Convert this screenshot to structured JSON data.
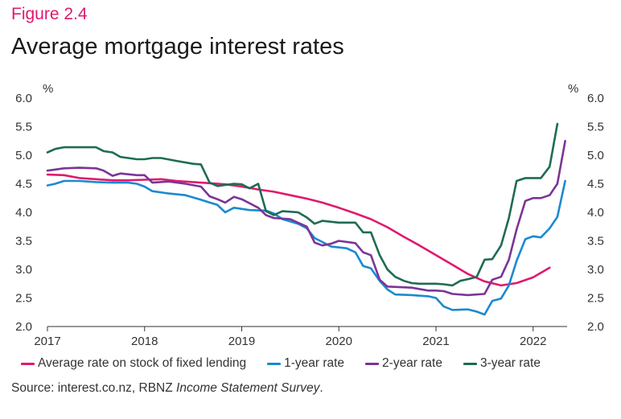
{
  "header": {
    "figure_label": "Figure 2.4",
    "title": "Average mortgage interest rates"
  },
  "footer": {
    "source_prefix": "Source: interest.co.nz, RBNZ ",
    "source_italic": "Income Statement Survey",
    "source_suffix": "."
  },
  "chart_data": {
    "type": "line",
    "title": "Average mortgage interest rates",
    "y_unit_left": "%",
    "y_unit_right": "%",
    "ylim": [
      2.0,
      6.0
    ],
    "xlim": [
      2017.0,
      2022.35
    ],
    "y_ticks": [
      "2.0",
      "2.5",
      "3.0",
      "3.5",
      "4.0",
      "4.5",
      "5.0",
      "5.5",
      "6.0"
    ],
    "x_ticks": [
      "2017",
      "2018",
      "2019",
      "2020",
      "2021",
      "2022"
    ],
    "grid": false,
    "legend_position": "bottom",
    "series": [
      {
        "name": "Average rate on stock of fixed lending",
        "color": "#e0196e",
        "points": [
          [
            2017.0,
            4.66
          ],
          [
            2017.17,
            4.65
          ],
          [
            2017.33,
            4.6
          ],
          [
            2017.5,
            4.58
          ],
          [
            2017.67,
            4.56
          ],
          [
            2017.83,
            4.56
          ],
          [
            2018.0,
            4.57
          ],
          [
            2018.17,
            4.58
          ],
          [
            2018.33,
            4.55
          ],
          [
            2018.5,
            4.53
          ],
          [
            2018.67,
            4.51
          ],
          [
            2018.83,
            4.49
          ],
          [
            2019.0,
            4.45
          ],
          [
            2019.17,
            4.4
          ],
          [
            2019.33,
            4.36
          ],
          [
            2019.5,
            4.3
          ],
          [
            2019.67,
            4.24
          ],
          [
            2019.83,
            4.17
          ],
          [
            2020.0,
            4.08
          ],
          [
            2020.17,
            3.98
          ],
          [
            2020.33,
            3.88
          ],
          [
            2020.5,
            3.74
          ],
          [
            2020.67,
            3.57
          ],
          [
            2020.83,
            3.42
          ],
          [
            2021.0,
            3.25
          ],
          [
            2021.17,
            3.08
          ],
          [
            2021.33,
            2.92
          ],
          [
            2021.5,
            2.79
          ],
          [
            2021.67,
            2.72
          ],
          [
            2021.83,
            2.76
          ],
          [
            2022.0,
            2.86
          ],
          [
            2022.17,
            3.03
          ]
        ]
      },
      {
        "name": "1-year rate",
        "color": "#1a8ad0",
        "points": [
          [
            2017.0,
            4.47
          ],
          [
            2017.08,
            4.5
          ],
          [
            2017.17,
            4.55
          ],
          [
            2017.33,
            4.55
          ],
          [
            2017.5,
            4.53
          ],
          [
            2017.67,
            4.52
          ],
          [
            2017.83,
            4.52
          ],
          [
            2017.92,
            4.5
          ],
          [
            2018.0,
            4.45
          ],
          [
            2018.08,
            4.37
          ],
          [
            2018.25,
            4.33
          ],
          [
            2018.42,
            4.3
          ],
          [
            2018.58,
            4.22
          ],
          [
            2018.75,
            4.13
          ],
          [
            2018.83,
            4.0
          ],
          [
            2018.92,
            4.08
          ],
          [
            2019.08,
            4.04
          ],
          [
            2019.25,
            4.03
          ],
          [
            2019.33,
            3.98
          ],
          [
            2019.42,
            3.88
          ],
          [
            2019.58,
            3.8
          ],
          [
            2019.67,
            3.72
          ],
          [
            2019.75,
            3.55
          ],
          [
            2019.83,
            3.48
          ],
          [
            2019.92,
            3.4
          ],
          [
            2020.08,
            3.37
          ],
          [
            2020.17,
            3.3
          ],
          [
            2020.25,
            3.06
          ],
          [
            2020.33,
            3.02
          ],
          [
            2020.42,
            2.8
          ],
          [
            2020.5,
            2.65
          ],
          [
            2020.58,
            2.56
          ],
          [
            2020.75,
            2.55
          ],
          [
            2020.92,
            2.53
          ],
          [
            2021.0,
            2.5
          ],
          [
            2021.08,
            2.35
          ],
          [
            2021.17,
            2.29
          ],
          [
            2021.33,
            2.3
          ],
          [
            2021.42,
            2.26
          ],
          [
            2021.5,
            2.21
          ],
          [
            2021.58,
            2.45
          ],
          [
            2021.67,
            2.49
          ],
          [
            2021.75,
            2.72
          ],
          [
            2021.83,
            3.15
          ],
          [
            2021.92,
            3.53
          ],
          [
            2022.0,
            3.58
          ],
          [
            2022.08,
            3.56
          ],
          [
            2022.17,
            3.72
          ],
          [
            2022.25,
            3.92
          ],
          [
            2022.33,
            4.55
          ]
        ]
      },
      {
        "name": "2-year rate",
        "color": "#7a3596",
        "points": [
          [
            2017.0,
            4.73
          ],
          [
            2017.17,
            4.77
          ],
          [
            2017.33,
            4.78
          ],
          [
            2017.5,
            4.77
          ],
          [
            2017.58,
            4.73
          ],
          [
            2017.67,
            4.64
          ],
          [
            2017.75,
            4.68
          ],
          [
            2017.92,
            4.65
          ],
          [
            2018.0,
            4.65
          ],
          [
            2018.08,
            4.52
          ],
          [
            2018.25,
            4.54
          ],
          [
            2018.42,
            4.5
          ],
          [
            2018.58,
            4.45
          ],
          [
            2018.67,
            4.28
          ],
          [
            2018.75,
            4.23
          ],
          [
            2018.83,
            4.17
          ],
          [
            2018.92,
            4.27
          ],
          [
            2019.0,
            4.23
          ],
          [
            2019.17,
            4.08
          ],
          [
            2019.25,
            3.95
          ],
          [
            2019.33,
            3.9
          ],
          [
            2019.5,
            3.88
          ],
          [
            2019.67,
            3.75
          ],
          [
            2019.75,
            3.47
          ],
          [
            2019.83,
            3.42
          ],
          [
            2019.92,
            3.45
          ],
          [
            2020.0,
            3.5
          ],
          [
            2020.17,
            3.46
          ],
          [
            2020.25,
            3.3
          ],
          [
            2020.33,
            3.25
          ],
          [
            2020.42,
            2.82
          ],
          [
            2020.5,
            2.7
          ],
          [
            2020.75,
            2.68
          ],
          [
            2020.92,
            2.63
          ],
          [
            2021.0,
            2.63
          ],
          [
            2021.08,
            2.62
          ],
          [
            2021.17,
            2.57
          ],
          [
            2021.33,
            2.55
          ],
          [
            2021.5,
            2.57
          ],
          [
            2021.58,
            2.82
          ],
          [
            2021.67,
            2.87
          ],
          [
            2021.75,
            3.17
          ],
          [
            2021.83,
            3.7
          ],
          [
            2021.92,
            4.2
          ],
          [
            2022.0,
            4.25
          ],
          [
            2022.08,
            4.25
          ],
          [
            2022.17,
            4.3
          ],
          [
            2022.25,
            4.5
          ],
          [
            2022.33,
            5.25
          ]
        ]
      },
      {
        "name": "3-year rate",
        "color": "#1f6b55",
        "points": [
          [
            2017.0,
            5.05
          ],
          [
            2017.08,
            5.11
          ],
          [
            2017.17,
            5.14
          ],
          [
            2017.33,
            5.14
          ],
          [
            2017.5,
            5.14
          ],
          [
            2017.58,
            5.07
          ],
          [
            2017.67,
            5.05
          ],
          [
            2017.75,
            4.97
          ],
          [
            2017.92,
            4.93
          ],
          [
            2018.0,
            4.93
          ],
          [
            2018.08,
            4.95
          ],
          [
            2018.17,
            4.95
          ],
          [
            2018.33,
            4.9
          ],
          [
            2018.5,
            4.85
          ],
          [
            2018.58,
            4.84
          ],
          [
            2018.67,
            4.52
          ],
          [
            2018.75,
            4.46
          ],
          [
            2018.92,
            4.5
          ],
          [
            2019.0,
            4.49
          ],
          [
            2019.08,
            4.42
          ],
          [
            2019.17,
            4.5
          ],
          [
            2019.25,
            4.02
          ],
          [
            2019.33,
            3.95
          ],
          [
            2019.42,
            4.02
          ],
          [
            2019.58,
            4.0
          ],
          [
            2019.67,
            3.91
          ],
          [
            2019.75,
            3.8
          ],
          [
            2019.83,
            3.85
          ],
          [
            2020.0,
            3.82
          ],
          [
            2020.08,
            3.82
          ],
          [
            2020.17,
            3.82
          ],
          [
            2020.25,
            3.65
          ],
          [
            2020.33,
            3.65
          ],
          [
            2020.42,
            3.25
          ],
          [
            2020.5,
            3.0
          ],
          [
            2020.58,
            2.87
          ],
          [
            2020.67,
            2.8
          ],
          [
            2020.75,
            2.76
          ],
          [
            2020.83,
            2.75
          ],
          [
            2021.0,
            2.75
          ],
          [
            2021.08,
            2.74
          ],
          [
            2021.17,
            2.72
          ],
          [
            2021.25,
            2.8
          ],
          [
            2021.33,
            2.83
          ],
          [
            2021.42,
            2.87
          ],
          [
            2021.5,
            3.17
          ],
          [
            2021.58,
            3.18
          ],
          [
            2021.67,
            3.42
          ],
          [
            2021.75,
            3.9
          ],
          [
            2021.83,
            4.55
          ],
          [
            2021.92,
            4.6
          ],
          [
            2022.0,
            4.6
          ],
          [
            2022.08,
            4.6
          ],
          [
            2022.17,
            4.8
          ],
          [
            2022.25,
            5.55
          ]
        ]
      }
    ]
  }
}
